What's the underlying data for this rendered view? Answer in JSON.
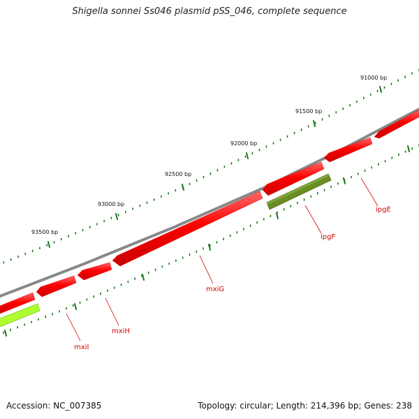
{
  "title": "Shigella sonnei Ss046 plasmid pSS_046, complete sequence",
  "footer": {
    "accession": "Accession: NC_007385",
    "summary": "Topology: circular; Length: 214,396 bp; Genes: 238"
  },
  "colors": {
    "backbone": "#808080",
    "cds_red": "#ff0000",
    "cds_olive": "#6b8e23",
    "cds_lime": "#adff2f",
    "tick": "#1a7a1a",
    "label": "#d40000"
  },
  "ticks": [
    "91000 bp",
    "91500 bp",
    "92000 bp",
    "92500 bp",
    "93000 bp",
    "93500 bp"
  ],
  "genes": [
    {
      "name": "ipgE",
      "color": "cds_red"
    },
    {
      "name": "ipgF",
      "color": "cds_olive"
    },
    {
      "name": "mxiG",
      "color": "cds_red"
    },
    {
      "name": "mxiH",
      "color": "cds_red"
    },
    {
      "name": "mxiI",
      "color": "cds_red"
    }
  ]
}
